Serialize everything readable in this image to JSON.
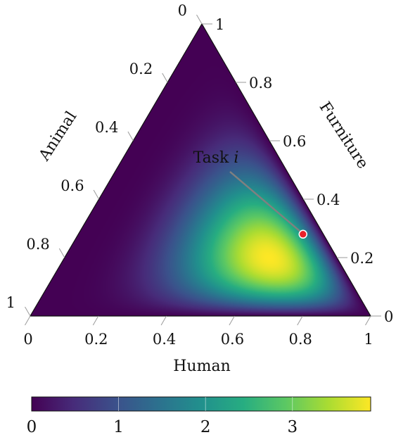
{
  "chart_data": {
    "type": "heatmap",
    "subtype": "ternary",
    "axes": {
      "human": {
        "label": "Human",
        "ticks": [
          "0",
          "0.2",
          "0.4",
          "0.6",
          "0.8",
          "1"
        ]
      },
      "animal": {
        "label": "Animal",
        "ticks": [
          "0",
          "0.2",
          "0.4",
          "0.6",
          "0.8",
          "1"
        ]
      },
      "furniture": {
        "label": "Furniture",
        "ticks": [
          "0",
          "0.2",
          "0.4",
          "0.6",
          "0.8",
          "1"
        ]
      }
    },
    "density": {
      "colormap": "viridis",
      "peak": {
        "human": 0.6,
        "animal": 0.2,
        "furniture": 0.2
      },
      "peak_value": 3.9,
      "range": [
        0,
        3.9
      ]
    },
    "colorbar": {
      "range": [
        0,
        3.9
      ],
      "ticks": [
        0,
        1,
        2,
        3
      ],
      "tick_labels": [
        "0",
        "1",
        "2",
        "3"
      ]
    },
    "annotation": {
      "label_prefix": "Task ",
      "label_var": "i",
      "point": {
        "human": 0.66,
        "animal": 0.06,
        "furniture": 0.28
      },
      "marker_color": "#e8212b"
    },
    "colors": {
      "viridis": [
        "#440154",
        "#472c7a",
        "#3b518b",
        "#2c718e",
        "#21908d",
        "#27ad81",
        "#5cc863",
        "#aadc32",
        "#fde725"
      ]
    }
  }
}
